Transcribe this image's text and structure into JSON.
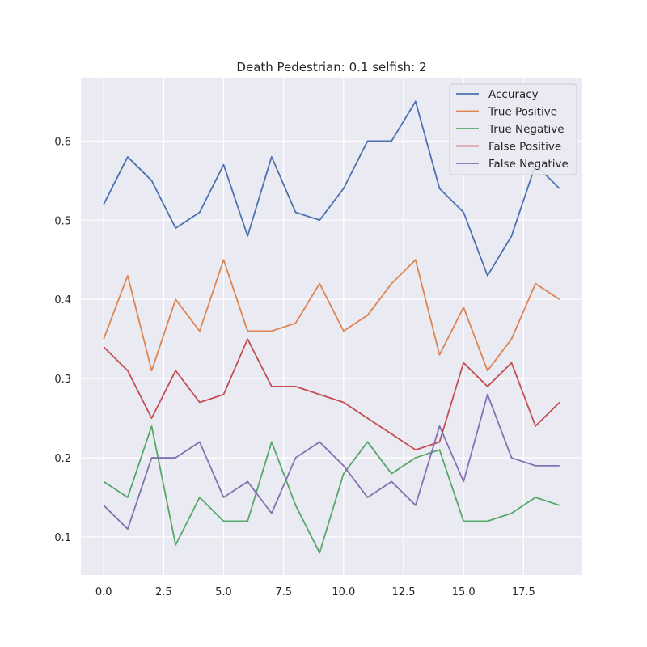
{
  "chart_data": {
    "type": "line",
    "title": "Death Pedestrian: 0.1 selfish: 2",
    "xlabel": "",
    "ylabel": "",
    "xlim": [
      -0.95,
      19.95
    ],
    "ylim": [
      0.052,
      0.68
    ],
    "xticks": [
      0.0,
      2.5,
      5.0,
      7.5,
      10.0,
      12.5,
      15.0,
      17.5
    ],
    "xtick_labels": [
      "0.0",
      "2.5",
      "5.0",
      "7.5",
      "10.0",
      "12.5",
      "15.0",
      "17.5"
    ],
    "yticks": [
      0.1,
      0.2,
      0.3,
      0.4,
      0.5,
      0.6
    ],
    "ytick_labels": [
      "0.1",
      "0.2",
      "0.3",
      "0.4",
      "0.5",
      "0.6"
    ],
    "grid": true,
    "legend_position": "top-right",
    "x": [
      0,
      1,
      2,
      3,
      4,
      5,
      6,
      7,
      8,
      9,
      10,
      11,
      12,
      13,
      14,
      15,
      16,
      17,
      18,
      19
    ],
    "series": [
      {
        "name": "Accuracy",
        "color": "#4c72b0",
        "values": [
          0.52,
          0.58,
          0.55,
          0.49,
          0.51,
          0.57,
          0.48,
          0.58,
          0.51,
          0.5,
          0.54,
          0.6,
          0.6,
          0.65,
          0.54,
          0.51,
          0.43,
          0.48,
          0.57,
          0.54
        ]
      },
      {
        "name": "True Positive",
        "color": "#dd8452",
        "values": [
          0.35,
          0.43,
          0.31,
          0.4,
          0.36,
          0.45,
          0.36,
          0.36,
          0.37,
          0.42,
          0.36,
          0.38,
          0.42,
          0.45,
          0.33,
          0.39,
          0.31,
          0.35,
          0.42,
          0.4
        ]
      },
      {
        "name": "True Negative",
        "color": "#55a868",
        "values": [
          0.17,
          0.15,
          0.24,
          0.09,
          0.15,
          0.12,
          0.12,
          0.22,
          0.14,
          0.08,
          0.18,
          0.22,
          0.18,
          0.2,
          0.21,
          0.12,
          0.12,
          0.13,
          0.15,
          0.14
        ]
      },
      {
        "name": "False Positive",
        "color": "#c44e52",
        "values": [
          0.34,
          0.31,
          0.25,
          0.31,
          0.27,
          0.28,
          0.35,
          0.29,
          0.29,
          0.28,
          0.27,
          0.25,
          0.23,
          0.21,
          0.22,
          0.32,
          0.29,
          0.32,
          0.24,
          0.27
        ]
      },
      {
        "name": "False Negative",
        "color": "#8172b3",
        "values": [
          0.14,
          0.11,
          0.2,
          0.2,
          0.22,
          0.15,
          0.17,
          0.13,
          0.2,
          0.22,
          0.19,
          0.15,
          0.17,
          0.14,
          0.24,
          0.17,
          0.28,
          0.2,
          0.19,
          0.19
        ]
      }
    ]
  }
}
